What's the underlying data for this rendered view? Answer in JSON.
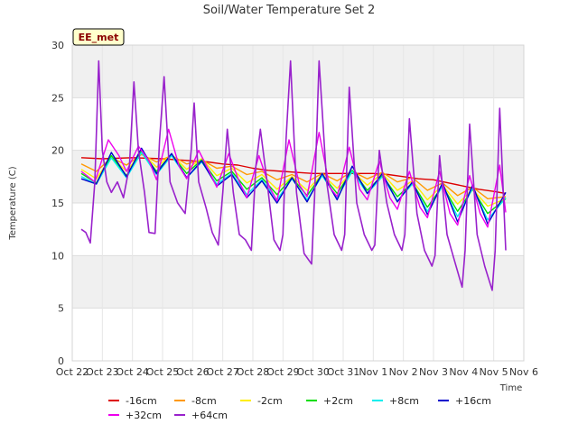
{
  "chart_data": {
    "type": "line",
    "title": "Soil/Water Temperature Set 2",
    "xlabel": "Time",
    "ylabel": "Temperature (C)",
    "station_label": "EE_met",
    "xlim": [
      0,
      15
    ],
    "ylim": [
      0,
      30
    ],
    "x_tick_labels": [
      "Oct 22",
      "Oct 23",
      "Oct 24",
      "Oct 25",
      "Oct 26",
      "Oct 27",
      "Oct 28",
      "Oct 29",
      "Oct 30",
      "Oct 31",
      "Nov 1",
      "Nov 2",
      "Nov 3",
      "Nov 4",
      "Nov 5",
      "Nov 6"
    ],
    "y_ticks": [
      0,
      5,
      10,
      15,
      20,
      25,
      30
    ],
    "background_bands": true,
    "legend_position": "bottom",
    "x_unit": "days since Oct 22",
    "series": [
      {
        "name": "-16cm",
        "color": "#dd0000",
        "x": [
          0.3,
          1,
          2,
          3,
          3.5,
          4,
          4.5,
          5,
          5.5,
          6,
          6.5,
          7,
          7.5,
          8,
          8.5,
          9,
          9.5,
          10,
          10.5,
          11,
          11.5,
          12,
          12.5,
          13,
          13.5,
          14,
          14.4
        ],
        "values": [
          19.3,
          19.2,
          19.3,
          19.2,
          19.1,
          19.0,
          18.9,
          18.7,
          18.6,
          18.3,
          18.1,
          18.0,
          17.9,
          17.8,
          17.8,
          17.8,
          17.8,
          17.8,
          17.7,
          17.5,
          17.3,
          17.2,
          16.9,
          16.6,
          16.3,
          16.1,
          15.9
        ]
      },
      {
        "name": "-8cm",
        "color": "#ff9900",
        "x": [
          0.3,
          0.8,
          1.3,
          1.8,
          2.3,
          2.8,
          3.3,
          3.8,
          4.3,
          4.8,
          5.3,
          5.8,
          6.3,
          6.8,
          7.3,
          7.8,
          8.3,
          8.8,
          9.3,
          9.8,
          10.3,
          10.8,
          11.3,
          11.8,
          12.3,
          12.8,
          13.3,
          13.8,
          14.4
        ],
        "values": [
          18.7,
          18.0,
          19.3,
          18.6,
          19.6,
          18.9,
          19.5,
          18.7,
          19.1,
          18.3,
          18.5,
          17.7,
          18.0,
          17.2,
          17.7,
          17.0,
          17.8,
          17.1,
          18.0,
          17.3,
          17.9,
          17.0,
          17.4,
          16.2,
          16.9,
          15.7,
          16.5,
          15.4,
          15.6
        ]
      },
      {
        "name": "-2cm",
        "color": "#ffee00",
        "x": [
          0.3,
          0.8,
          1.3,
          1.8,
          2.3,
          2.8,
          3.3,
          3.8,
          4.3,
          4.8,
          5.3,
          5.8,
          6.3,
          6.8,
          7.3,
          7.8,
          8.3,
          8.8,
          9.3,
          9.8,
          10.3,
          10.8,
          11.3,
          11.8,
          12.3,
          12.8,
          13.3,
          13.8,
          14.4
        ],
        "values": [
          18.2,
          17.3,
          19.4,
          18.0,
          19.8,
          18.4,
          19.6,
          18.2,
          19.2,
          17.6,
          18.3,
          16.9,
          17.7,
          16.3,
          17.5,
          16.2,
          17.7,
          16.4,
          18.0,
          16.7,
          17.8,
          16.2,
          17.1,
          15.3,
          16.7,
          14.9,
          16.3,
          14.7,
          15.4
        ]
      },
      {
        "name": "+2cm",
        "color": "#00dd00",
        "x": [
          0.3,
          0.8,
          1.3,
          1.8,
          2.3,
          2.8,
          3.3,
          3.8,
          4.3,
          4.8,
          5.3,
          5.8,
          6.3,
          6.8,
          7.3,
          7.8,
          8.3,
          8.8,
          9.3,
          9.8,
          10.3,
          10.8,
          11.3,
          11.8,
          12.3,
          12.8,
          13.3,
          13.8,
          14.4
        ],
        "values": [
          17.8,
          16.9,
          19.5,
          17.6,
          19.9,
          18.0,
          19.6,
          17.8,
          19.1,
          17.1,
          18.0,
          16.3,
          17.4,
          15.8,
          17.4,
          15.7,
          17.7,
          15.9,
          18.1,
          16.2,
          17.6,
          15.6,
          16.9,
          14.6,
          16.6,
          14.2,
          16.3,
          14.0,
          15.4
        ]
      },
      {
        "name": "+8cm",
        "color": "#00eeee",
        "x": [
          0.3,
          0.8,
          1.3,
          1.8,
          2.3,
          2.8,
          3.3,
          3.8,
          4.3,
          4.8,
          5.3,
          5.8,
          6.3,
          6.8,
          7.3,
          7.8,
          8.3,
          8.8,
          9.3,
          9.8,
          10.3,
          10.8,
          11.3,
          11.8,
          12.3,
          12.8,
          13.3,
          13.8,
          14.4
        ],
        "values": [
          17.5,
          16.8,
          19.3,
          17.4,
          19.8,
          17.7,
          19.5,
          17.4,
          18.9,
          16.8,
          17.8,
          15.8,
          17.2,
          15.3,
          17.3,
          15.3,
          17.6,
          15.5,
          18.0,
          15.9,
          17.5,
          15.2,
          16.8,
          14.2,
          16.6,
          13.7,
          16.4,
          13.4,
          15.5
        ]
      },
      {
        "name": "+16cm",
        "color": "#0000cc",
        "x": [
          0.3,
          0.8,
          1.3,
          1.8,
          2.3,
          2.8,
          3.3,
          3.8,
          4.3,
          4.8,
          5.3,
          5.8,
          6.3,
          6.8,
          7.3,
          7.8,
          8.3,
          8.8,
          9.3,
          9.8,
          10.3,
          10.8,
          11.3,
          11.8,
          12.3,
          12.8,
          13.3,
          13.8,
          14.4
        ],
        "values": [
          17.3,
          16.8,
          19.8,
          17.5,
          20.2,
          17.8,
          19.7,
          17.4,
          19.0,
          16.6,
          17.7,
          15.5,
          17.1,
          15.0,
          17.4,
          15.1,
          17.8,
          15.3,
          18.5,
          15.9,
          17.8,
          15.1,
          17.0,
          13.9,
          16.9,
          13.2,
          16.7,
          13.0,
          16.0
        ]
      },
      {
        "name": "+32cm",
        "color": "#ee00ee",
        "x": [
          0.3,
          0.75,
          1.2,
          1.55,
          1.8,
          2.2,
          2.55,
          2.8,
          3.2,
          3.55,
          3.8,
          4.2,
          4.55,
          4.8,
          5.2,
          5.55,
          5.8,
          6.2,
          6.55,
          6.8,
          7.2,
          7.55,
          7.8,
          8.2,
          8.55,
          8.8,
          9.2,
          9.55,
          9.8,
          10.2,
          10.55,
          10.8,
          11.2,
          11.55,
          11.8,
          12.2,
          12.55,
          12.8,
          13.2,
          13.55,
          13.8,
          14.2,
          14.4
        ],
        "values": [
          18.0,
          17.0,
          21.0,
          19.5,
          18.0,
          20.4,
          19.0,
          17.2,
          22.0,
          18.5,
          17.3,
          20.0,
          18.0,
          16.5,
          19.7,
          17.0,
          15.5,
          19.5,
          16.5,
          15.2,
          21.0,
          16.7,
          15.6,
          21.7,
          16.5,
          15.6,
          20.3,
          16.3,
          15.3,
          19.0,
          15.5,
          14.4,
          18.0,
          14.6,
          13.6,
          18.0,
          14.0,
          12.9,
          17.6,
          14.0,
          12.7,
          18.6,
          14.1
        ]
      },
      {
        "name": "+64cm",
        "color": "#9922cc",
        "x": [
          0.3,
          0.45,
          0.6,
          0.75,
          0.88,
          1.0,
          1.15,
          1.3,
          1.5,
          1.7,
          1.9,
          2.05,
          2.2,
          2.4,
          2.55,
          2.75,
          2.9,
          3.05,
          3.25,
          3.5,
          3.75,
          3.95,
          4.05,
          4.2,
          4.45,
          4.65,
          4.85,
          5.0,
          5.15,
          5.35,
          5.55,
          5.75,
          5.95,
          6.1,
          6.25,
          6.45,
          6.7,
          6.9,
          7.0,
          7.1,
          7.25,
          7.45,
          7.7,
          7.95,
          8.05,
          8.2,
          8.45,
          8.7,
          8.95,
          9.05,
          9.2,
          9.45,
          9.7,
          9.95,
          10.05,
          10.2,
          10.45,
          10.7,
          10.95,
          11.05,
          11.2,
          11.45,
          11.7,
          11.95,
          12.05,
          12.2,
          12.45,
          12.7,
          12.95,
          13.05,
          13.2,
          13.45,
          13.7,
          13.95,
          14.05,
          14.2,
          14.4
        ],
        "values": [
          12.5,
          12.2,
          11.2,
          17.0,
          28.5,
          20.0,
          17.0,
          16.0,
          17.0,
          15.5,
          18.5,
          26.5,
          20.0,
          16.0,
          12.2,
          12.1,
          21.0,
          27.0,
          17.0,
          15.0,
          14.0,
          20.0,
          24.5,
          17.0,
          14.5,
          12.2,
          11.0,
          16.0,
          22.0,
          16.0,
          12.0,
          11.5,
          10.5,
          18.5,
          22.0,
          17.5,
          11.5,
          10.5,
          12.0,
          21.0,
          28.5,
          16.0,
          10.2,
          9.2,
          15.5,
          28.5,
          17.0,
          12.0,
          10.5,
          12.0,
          26.0,
          15.0,
          12.0,
          10.5,
          11.0,
          20.0,
          15.0,
          12.0,
          10.5,
          12.0,
          23.0,
          14.0,
          10.5,
          9.0,
          10.0,
          19.5,
          12.0,
          9.5,
          7.0,
          10.5,
          22.5,
          12.0,
          9.0,
          6.7,
          10.5,
          24.0,
          10.5
        ]
      }
    ]
  }
}
